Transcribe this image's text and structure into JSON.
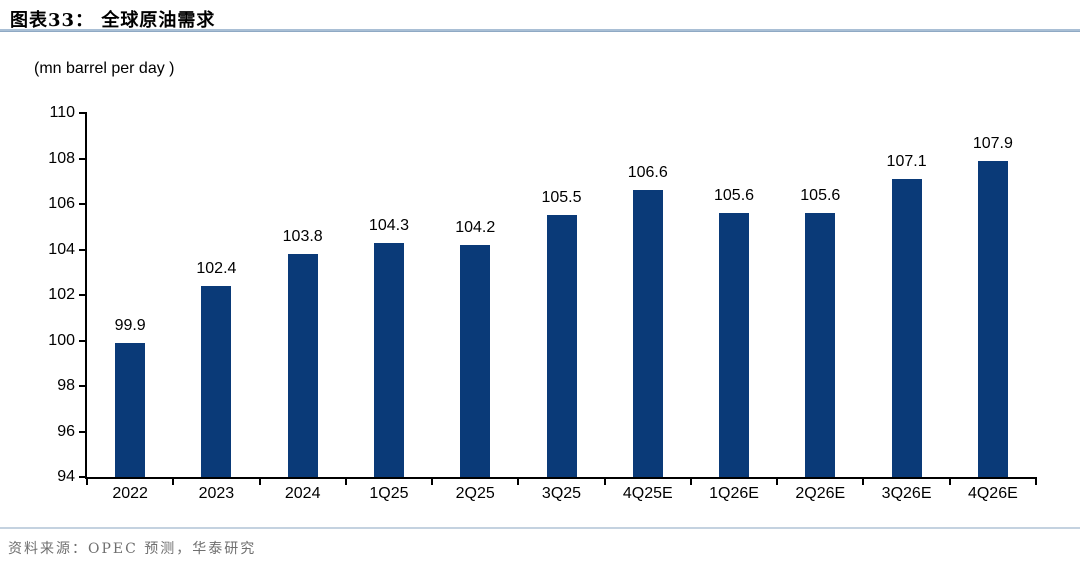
{
  "header": {
    "title": "图表33：  全球原油需求",
    "unit_label": "(mn barrel per day )"
  },
  "footer": {
    "source": "资料来源：OPEC 预测，华泰研究"
  },
  "colors": {
    "bar": "#0a3a78",
    "axis": "#000000",
    "title_rule": "#a9bfd5",
    "footer_rule": "#c4d2e0",
    "source_text": "#6f6f6f"
  },
  "chart_data": {
    "type": "bar",
    "title": "全球原油需求",
    "subtitle": "图表33",
    "unit": "mn barrel per day",
    "categories": [
      "2022",
      "2023",
      "2024",
      "1Q25",
      "2Q25",
      "3Q25",
      "4Q25E",
      "1Q26E",
      "2Q26E",
      "3Q26E",
      "4Q26E"
    ],
    "values": [
      99.9,
      102.4,
      103.8,
      104.3,
      104.2,
      105.5,
      106.6,
      105.6,
      105.6,
      107.1,
      107.9
    ],
    "xlabel": "",
    "ylabel": "(mn barrel per day )",
    "ylim": [
      94,
      110
    ],
    "yticks": [
      94,
      96,
      98,
      100,
      102,
      104,
      106,
      108,
      110
    ],
    "grid": false,
    "legend": false,
    "bar_color": "#0a3a78",
    "value_labels_shown": true,
    "source_note": "资料来源：OPEC 预测，华泰研究"
  }
}
